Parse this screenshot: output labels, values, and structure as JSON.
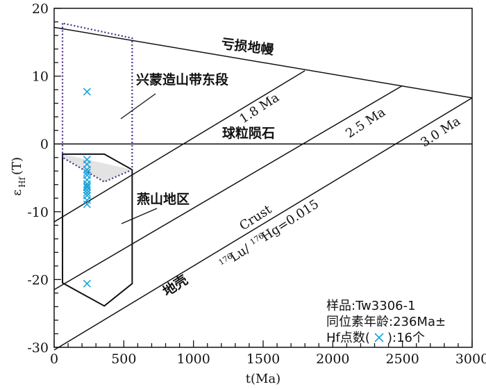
{
  "chart_data": {
    "type": "scatter",
    "xlabel": "t(Ma)",
    "ylabel_main": "ε",
    "ylabel_sub": "Hf",
    "ylabel_tail": "(T)",
    "xlim": [
      0,
      3000
    ],
    "ylim": [
      -30,
      20
    ],
    "xticks": [
      0,
      500,
      1000,
      1500,
      2000,
      2500,
      3000
    ],
    "yticks": [
      20,
      10,
      0,
      -10,
      -20,
      -30
    ],
    "points": [
      {
        "x": 236,
        "y": 7.7
      },
      {
        "x": 236,
        "y": -2.3
      },
      {
        "x": 236,
        "y": -3.0
      },
      {
        "x": 236,
        "y": -3.8
      },
      {
        "x": 236,
        "y": -4.6
      },
      {
        "x": 236,
        "y": -5.3
      },
      {
        "x": 236,
        "y": -5.9
      },
      {
        "x": 236,
        "y": -6.4
      },
      {
        "x": 236,
        "y": -6.8
      },
      {
        "x": 236,
        "y": -7.2
      },
      {
        "x": 236,
        "y": -7.6
      },
      {
        "x": 236,
        "y": -8.3
      },
      {
        "x": 236,
        "y": -8.9
      },
      {
        "x": 236,
        "y": -6.2
      },
      {
        "x": 236,
        "y": -4.2
      },
      {
        "x": 236,
        "y": -20.6
      }
    ],
    "reference_lines": [
      {
        "label": "亏损地幔",
        "x": [
          0,
          3000
        ],
        "y": [
          17.2,
          6.8
        ]
      },
      {
        "label": "球粒陨石",
        "x": [
          0,
          3000
        ],
        "y": [
          0,
          0
        ]
      },
      {
        "label": "1.8 Ma",
        "x": [
          0,
          1800
        ],
        "y": [
          -11.5,
          10.8
        ]
      },
      {
        "label": "2.5 Ma",
        "x": [
          0,
          2500
        ],
        "y": [
          -21.5,
          8.6
        ]
      },
      {
        "label": "3.0 Ma",
        "x": [
          0,
          3000
        ],
        "y": [
          -30.4,
          6.8
        ]
      }
    ],
    "regions": [
      {
        "label": "兴蒙造山带东段",
        "x": [
          60,
          60,
          560,
          560,
          360,
          60
        ],
        "y": [
          17.8,
          -2.0,
          -3.8,
          15.6,
          -5.6,
          -2.0
        ]
      },
      {
        "label": "燕山地区",
        "x": [
          60,
          60,
          360,
          560,
          560,
          60
        ],
        "y": [
          -1.5,
          -20.5,
          -23.9,
          -20.6,
          -3.8,
          -1.5
        ]
      }
    ],
    "annotations": {
      "depleted_mantle": "亏损地幔",
      "chondrite": "球粒陨石",
      "xingmeng": "兴蒙造山带东段",
      "yanshan": "燕山地区",
      "crust_cn": "地壳",
      "crust_en": "Crust",
      "lu_hf_sup1": "176",
      "lu_hf_mid1": "Lu/",
      "lu_hf_sup2": "176",
      "lu_hf_mid2": "Hg=0.015",
      "ma18": "1.8 Ma",
      "ma25": "2.5 Ma",
      "ma30": "3.0 Ma"
    },
    "legend": {
      "sample": "样品:Tw3306-1",
      "age": "同位素年龄:236Ma±",
      "hf_prefix": "Hf点数(",
      "hf_suffix": "):16个"
    },
    "colors": {
      "point": "#1aa3dc",
      "line": "#111111",
      "region1": "#4b2a8a",
      "shade": "#e3e3e3"
    }
  }
}
